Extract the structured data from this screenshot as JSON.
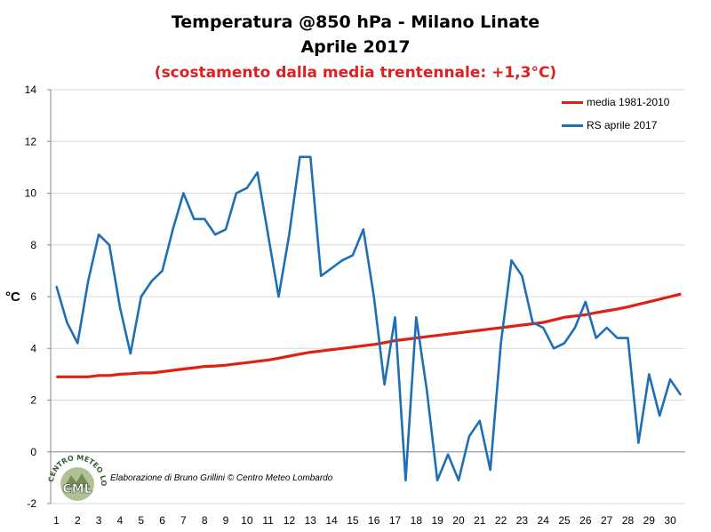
{
  "title": "Temperatura @850 hPa - Milano Linate",
  "subtitle": "Aprile 2017",
  "note": "(scostamento dalla media trentennale: +1,3°C)",
  "ylabel": "°C",
  "credit": "Elaborazione di Bruno Grillini  © Centro Meteo Lombardo",
  "logo_text": "CENTRO METEO LOMBARDO",
  "logo_short": "CML",
  "colors": {
    "mean": "#e02010",
    "rs": "#1f6fb5",
    "note": "#e02020",
    "grid": "#d9d9d9"
  },
  "chart_data": {
    "type": "line",
    "title": "Temperatura @850 hPa - Milano Linate",
    "subtitle": "Aprile 2017",
    "ylabel": "°C",
    "xlabel": "",
    "ylim": [
      -2,
      14
    ],
    "yticks": [
      -2,
      0,
      2,
      4,
      6,
      8,
      10,
      12,
      14
    ],
    "xlim": [
      1,
      30.5
    ],
    "xticks": [
      1,
      2,
      3,
      4,
      5,
      6,
      7,
      8,
      9,
      10,
      11,
      12,
      13,
      14,
      15,
      16,
      17,
      18,
      19,
      20,
      21,
      22,
      23,
      24,
      25,
      26,
      27,
      28,
      29,
      30
    ],
    "grid": "horizontal",
    "legend": "top-right",
    "series": [
      {
        "name": "media 1981-2010",
        "x": [
          1,
          1.5,
          2,
          2.5,
          3,
          3.5,
          4,
          4.5,
          5,
          5.5,
          6,
          6.5,
          7,
          7.5,
          8,
          8.5,
          9,
          9.5,
          10,
          10.5,
          11,
          11.5,
          12,
          12.5,
          13,
          13.5,
          14,
          14.5,
          15,
          15.5,
          16,
          16.5,
          17,
          17.5,
          18,
          18.5,
          19,
          19.5,
          20,
          20.5,
          21,
          21.5,
          22,
          22.5,
          23,
          23.5,
          24,
          24.5,
          25,
          25.5,
          26,
          26.5,
          27,
          27.5,
          28,
          28.5,
          29,
          29.5,
          30,
          30.5
        ],
        "values": [
          2.9,
          2.9,
          2.9,
          2.9,
          2.95,
          2.95,
          3.0,
          3.02,
          3.05,
          3.05,
          3.1,
          3.15,
          3.2,
          3.25,
          3.3,
          3.32,
          3.35,
          3.4,
          3.45,
          3.5,
          3.55,
          3.62,
          3.7,
          3.78,
          3.85,
          3.9,
          3.95,
          4.0,
          4.05,
          4.1,
          4.15,
          4.22,
          4.3,
          4.35,
          4.4,
          4.45,
          4.5,
          4.55,
          4.6,
          4.65,
          4.7,
          4.75,
          4.8,
          4.85,
          4.9,
          4.95,
          5.0,
          5.1,
          5.2,
          5.25,
          5.3,
          5.38,
          5.45,
          5.52,
          5.6,
          5.7,
          5.8,
          5.9,
          6.0,
          6.1
        ]
      },
      {
        "name": "RS aprile 2017",
        "x": [
          1,
          1.5,
          2,
          2.5,
          3,
          3.5,
          4,
          4.5,
          5,
          5.5,
          6,
          6.5,
          7,
          7.5,
          8,
          8.5,
          9,
          9.5,
          10,
          10.5,
          11,
          11.5,
          12,
          12.5,
          13,
          13.5,
          14,
          14.5,
          15,
          15.5,
          16,
          16.5,
          17,
          17.5,
          18,
          18.5,
          19,
          19.5,
          20,
          20.5,
          21,
          21.5,
          22,
          22.5,
          23,
          23.5,
          24,
          24.5,
          25,
          25.5,
          26,
          26.5,
          27,
          27.5,
          28,
          28.5,
          29,
          29.5,
          30,
          30.5
        ],
        "values": [
          6.4,
          5.0,
          4.2,
          6.6,
          8.4,
          8.0,
          5.6,
          3.8,
          6.0,
          6.6,
          7.0,
          8.6,
          10.0,
          9.0,
          9.0,
          8.4,
          8.6,
          10.0,
          10.2,
          10.8,
          8.4,
          6.0,
          8.4,
          11.4,
          11.4,
          6.8,
          7.1,
          7.4,
          7.6,
          8.6,
          6.0,
          2.6,
          5.2,
          -1.1,
          5.2,
          2.4,
          -1.1,
          -0.1,
          -1.1,
          0.6,
          1.2,
          -0.7,
          4.2,
          7.4,
          6.8,
          5.0,
          4.8,
          4.0,
          4.2,
          4.8,
          5.8,
          4.4,
          4.8,
          4.4,
          4.4,
          0.35,
          3.0,
          1.4,
          2.8,
          2.2
        ]
      }
    ]
  }
}
